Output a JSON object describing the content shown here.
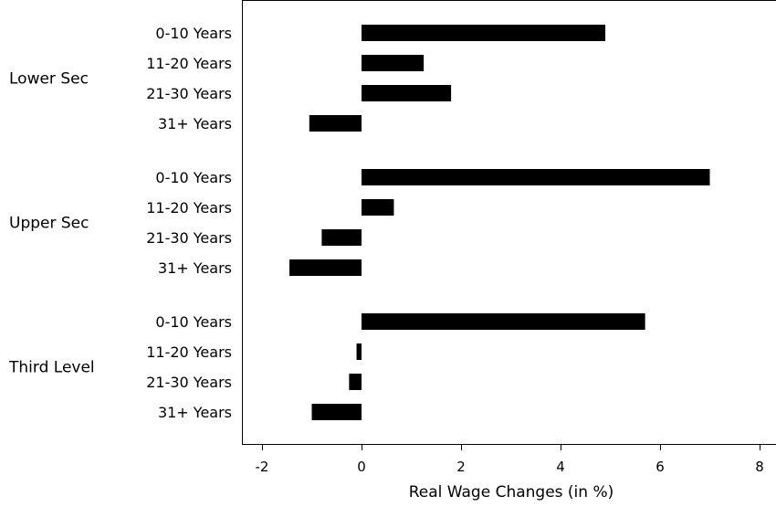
{
  "chart_data": {
    "type": "bar",
    "orientation": "horizontal",
    "title": "",
    "xlabel": "Real Wage Changes (in %)",
    "ylabel": "",
    "xlim": [
      -2.2,
      8.1
    ],
    "xticks": [
      "-2",
      "0",
      "2",
      "4",
      "6",
      "8"
    ],
    "grid": false,
    "bar_color": "#000000",
    "groups": [
      {
        "name": "Lower Sec",
        "categories": [
          "0-10 Years",
          "11-20 Years",
          "21-30 Years",
          "31+ Years"
        ],
        "values": [
          4.9,
          1.25,
          1.8,
          -1.05
        ]
      },
      {
        "name": "Upper Sec",
        "categories": [
          "0-10 Years",
          "11-20 Years",
          "21-30 Years",
          "31+ Years"
        ],
        "values": [
          7.0,
          0.65,
          -0.8,
          -1.45
        ]
      },
      {
        "name": "Third Level",
        "categories": [
          "0-10 Years",
          "11-20 Years",
          "21-30 Years",
          "31+ Years"
        ],
        "values": [
          5.7,
          -0.1,
          -0.25,
          -1.0
        ]
      }
    ]
  }
}
